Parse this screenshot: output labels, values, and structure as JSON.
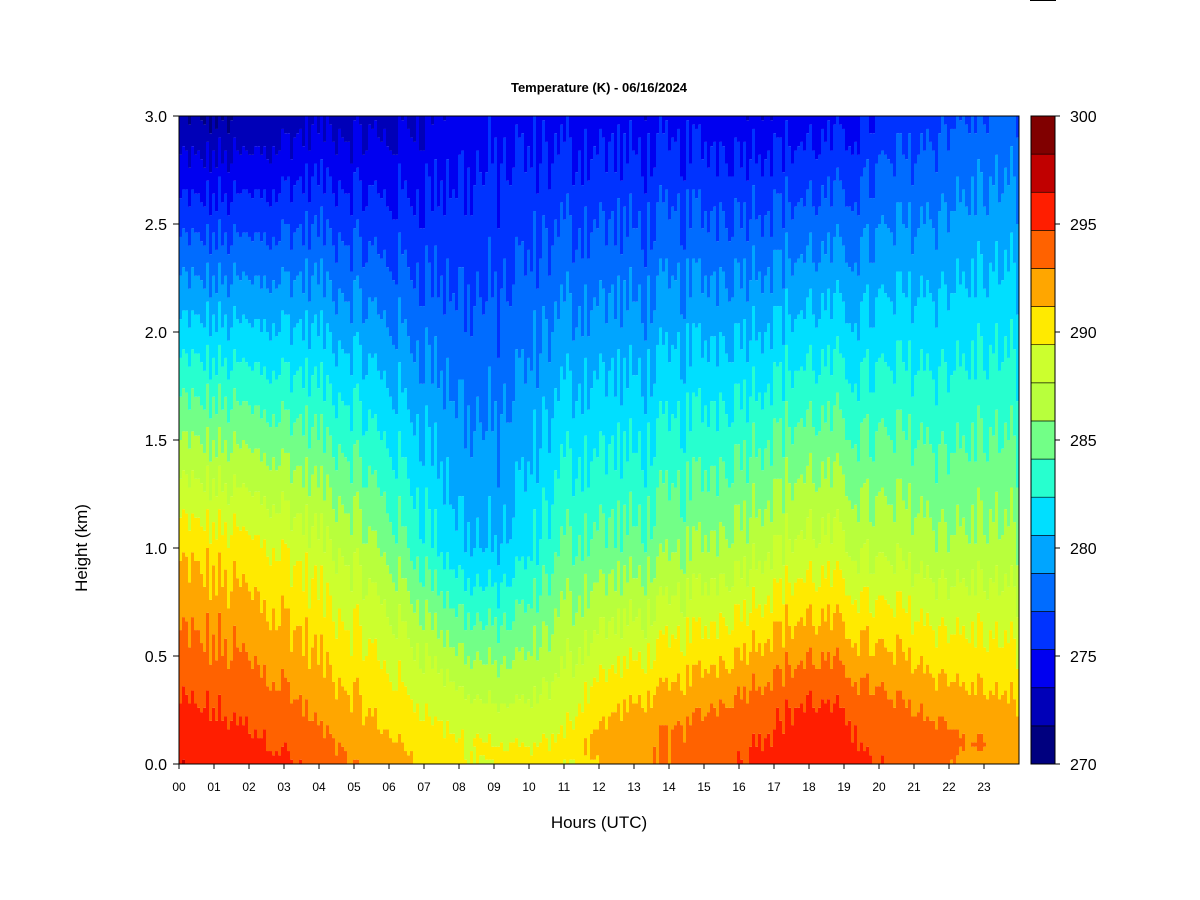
{
  "chart_data": {
    "type": "heatmap",
    "title": "Temperature (K) - 06/16/2024",
    "xlabel": "Hours (UTC)",
    "ylabel": "Height (km)",
    "x_ticks": [
      "00",
      "01",
      "02",
      "03",
      "04",
      "05",
      "06",
      "07",
      "08",
      "09",
      "10",
      "11",
      "12",
      "13",
      "14",
      "15",
      "16",
      "17",
      "18",
      "19",
      "20",
      "21",
      "22",
      "23"
    ],
    "y_ticks": [
      "0.0",
      "0.5",
      "1.0",
      "1.5",
      "2.0",
      "2.5",
      "3.0"
    ],
    "xlim": [
      0,
      24
    ],
    "ylim": [
      0,
      3.0
    ],
    "colorbar": {
      "min": 270,
      "max": 300,
      "step": 2,
      "tick_values": [
        270,
        275,
        280,
        285,
        290,
        295,
        300
      ],
      "tick_labels": [
        "270",
        "275",
        "280",
        "285",
        "290",
        "295",
        "300"
      ],
      "colors": [
        "#00007F",
        "#0000B8",
        "#0000F0",
        "#0033FF",
        "#006CFF",
        "#00A5FF",
        "#00DFFF",
        "#27FFCF",
        "#72FF87",
        "#B8FF3C",
        "#CCFF2E",
        "#FFEA00",
        "#FFA600",
        "#FF6200",
        "#FF1E00",
        "#C00000",
        "#800000"
      ]
    },
    "profiles": {
      "hours": [
        0,
        1,
        2,
        3,
        4,
        5,
        6,
        7,
        8,
        9,
        10,
        11,
        12,
        13,
        14,
        15,
        16,
        17,
        18,
        19,
        20,
        21,
        22,
        23,
        24
      ],
      "surface_temp": [
        297.5,
        297.2,
        296.8,
        296.2,
        295.0,
        294.0,
        293.2,
        292.2,
        291.0,
        290.2,
        289.8,
        290.2,
        292.6,
        293.5,
        294.2,
        295.0,
        295.8,
        296.6,
        297.2,
        296.8,
        295.8,
        295.0,
        294.2,
        293.5,
        293.0
      ],
      "low_lapse_rate_per_km": [
        7,
        7,
        7,
        7,
        7,
        7,
        8,
        9,
        10,
        10,
        8,
        6,
        8,
        9,
        9,
        9,
        9,
        9,
        9,
        9,
        9,
        8,
        8,
        7,
        7
      ],
      "inversion_depth_km": [
        0.9,
        0.9,
        0.9,
        0.9,
        0.85,
        0.8,
        0.7,
        0.5,
        0.2,
        0,
        0,
        0,
        0.1,
        0.12,
        0.14,
        0.17,
        0.2,
        0.24,
        0.26,
        0.24,
        0.2,
        0.15,
        0.1,
        0.08,
        0.08
      ],
      "upper_temp_at_3km": [
        271.5,
        271.6,
        271.8,
        272.5,
        273.0,
        272.8,
        272.8,
        273.6,
        274.3,
        274.5,
        274.5,
        274.5,
        274.5,
        274.3,
        274.3,
        274.4,
        274.3,
        274.3,
        274.3,
        274.5,
        275.5,
        276.2,
        276.8,
        277.2,
        277.3
      ]
    }
  }
}
